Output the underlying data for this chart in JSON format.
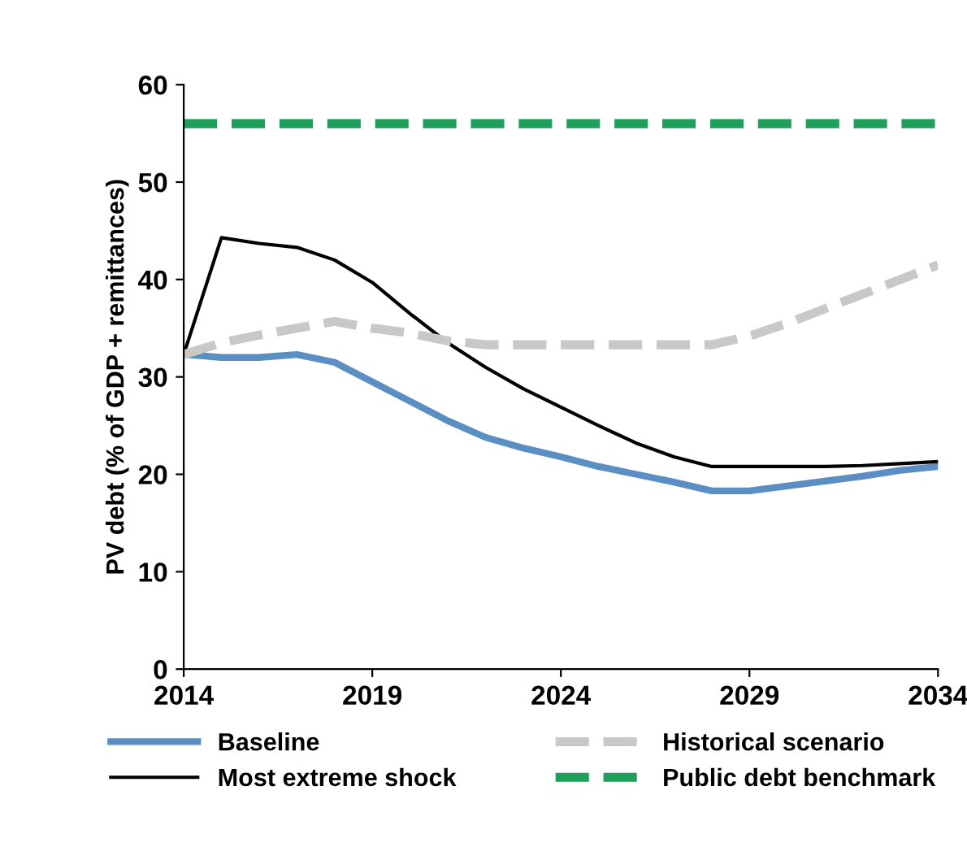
{
  "chart_data": {
    "type": "line",
    "ylabel": "PV debt (% of GDP + remittances)",
    "x": [
      2014,
      2015,
      2016,
      2017,
      2018,
      2019,
      2020,
      2021,
      2022,
      2023,
      2024,
      2025,
      2026,
      2027,
      2028,
      2029,
      2030,
      2031,
      2032,
      2033,
      2034
    ],
    "series": [
      {
        "name": "Baseline",
        "color": "#5b8fc3",
        "line_style": "solid",
        "values": [
          32.3,
          32,
          32,
          32.3,
          31.5,
          29.5,
          27.5,
          25.5,
          23.8,
          22.7,
          21.8,
          20.8,
          20,
          19.2,
          18.3,
          18.3,
          18.8,
          19.3,
          19.8,
          20.4,
          20.8
        ]
      },
      {
        "name": "Most extreme shock",
        "color": "#000000",
        "line_style": "solid",
        "values": [
          32.3,
          44.3,
          43.7,
          43.3,
          42,
          39.7,
          36.5,
          33.5,
          31,
          28.8,
          26.9,
          25,
          23.2,
          21.8,
          20.8,
          20.8,
          20.8,
          20.8,
          20.9,
          21.1,
          21.3
        ]
      },
      {
        "name": "Historical scenario",
        "color": "#c8c8c8",
        "line_style": "dashed",
        "values": [
          32.3,
          33.5,
          34.3,
          35,
          35.7,
          35,
          34.5,
          33.7,
          33.3,
          33.3,
          33.3,
          33.3,
          33.3,
          33.3,
          33.3,
          34.2,
          35.5,
          37,
          38.5,
          40,
          41.5
        ]
      },
      {
        "name": "Public debt benchmark",
        "color": "#1fa05a",
        "line_style": "dashed",
        "values": [
          56,
          56,
          56,
          56,
          56,
          56,
          56,
          56,
          56,
          56,
          56,
          56,
          56,
          56,
          56,
          56,
          56,
          56,
          56,
          56,
          56
        ]
      }
    ],
    "xlim": [
      2014,
      2034
    ],
    "xticks": [
      2014,
      2019,
      2024,
      2029,
      2034
    ],
    "ylim": [
      0,
      60
    ],
    "yticks": [
      0,
      10,
      20,
      30,
      40,
      50,
      60
    ],
    "grid": false,
    "legend": "bottom",
    "marker": "none"
  }
}
